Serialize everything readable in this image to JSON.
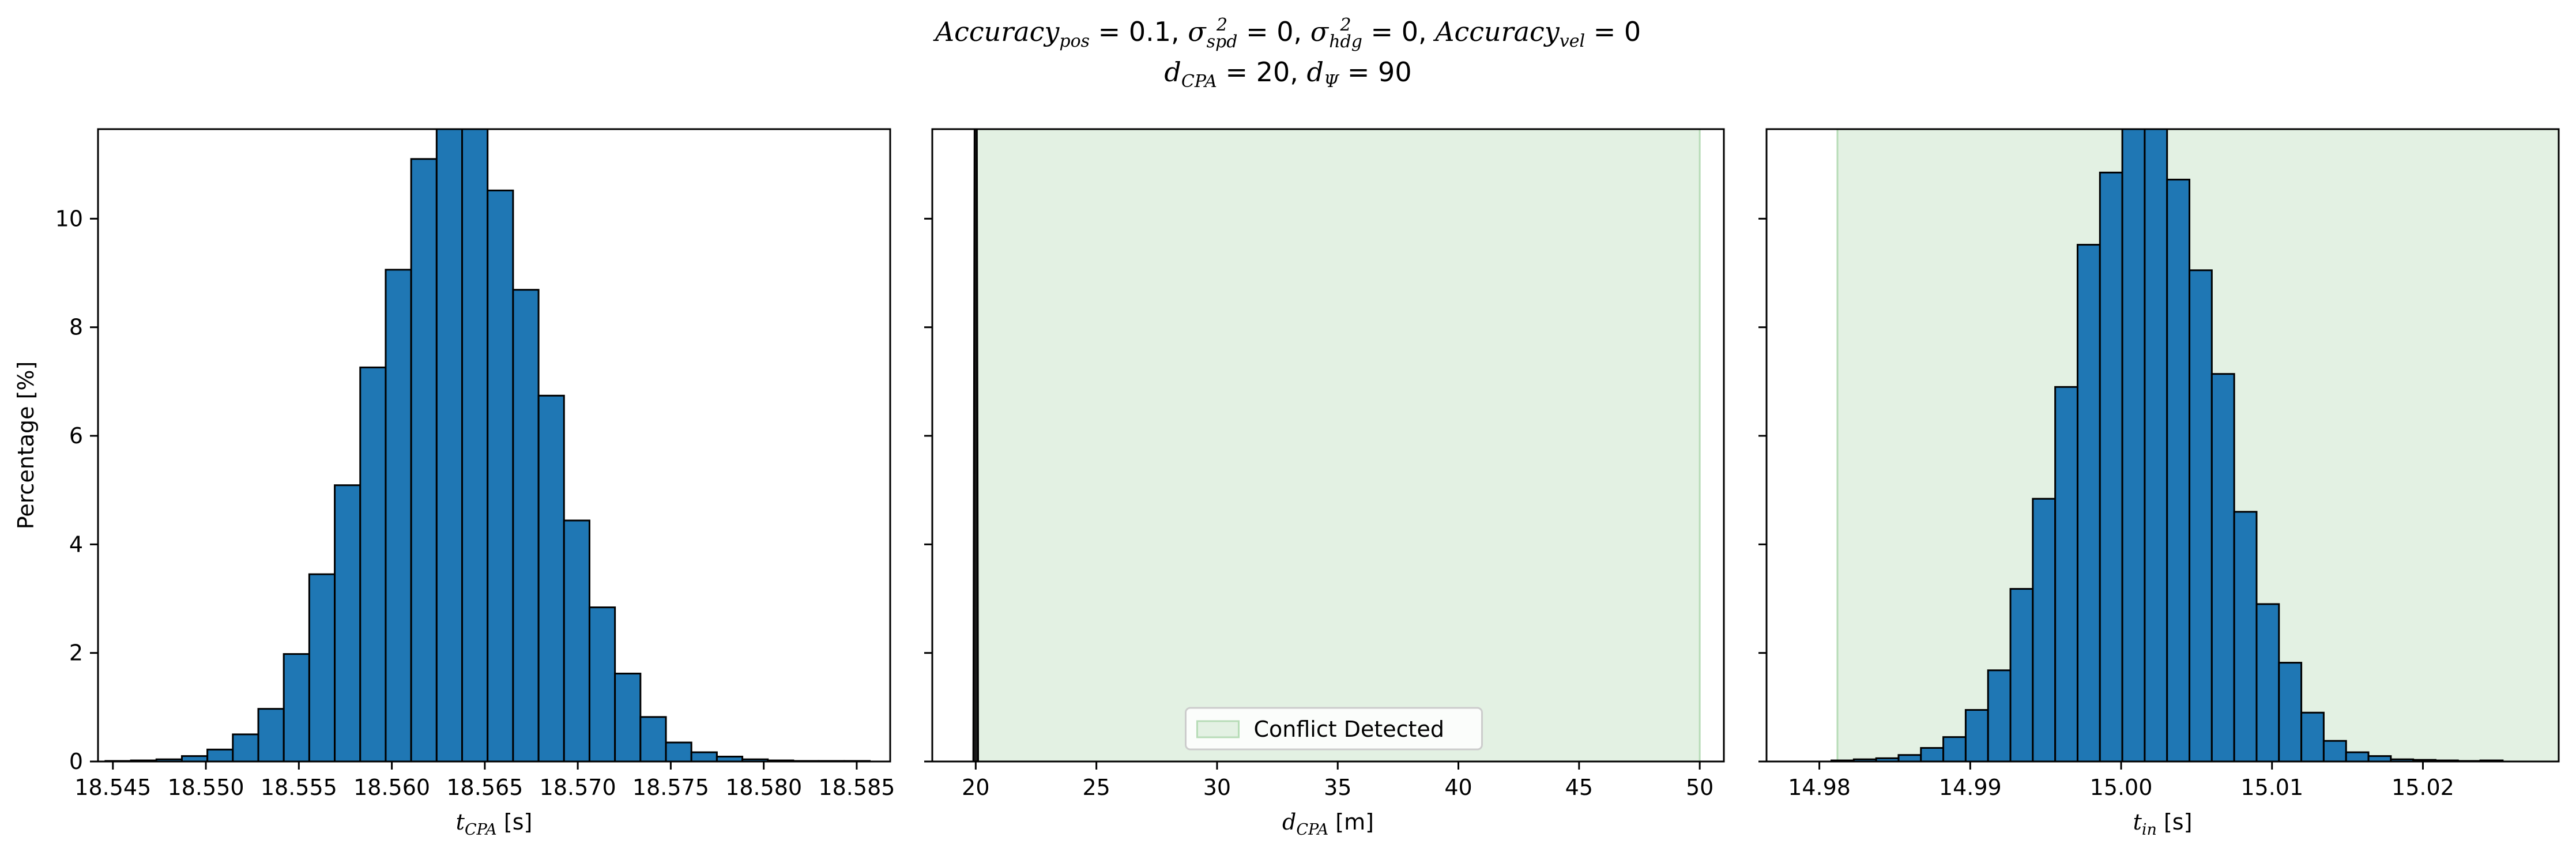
{
  "title": {
    "line1": [
      {
        "t": "Accuracy",
        "i": true
      },
      {
        "t": "pos",
        "sub": true
      },
      {
        "t": " = 0.1, "
      },
      {
        "t": "σ",
        "i": true
      },
      {
        "t": "2",
        "sup": true,
        "sub2": "spd"
      },
      {
        "t": " = 0, "
      },
      {
        "t": "σ",
        "i": true
      },
      {
        "t": "2",
        "sup": true,
        "sub2": "hdg"
      },
      {
        "t": " = 0, "
      },
      {
        "t": "Accuracy",
        "i": true
      },
      {
        "t": "vel",
        "sub": true
      },
      {
        "t": " = 0"
      }
    ],
    "line2": [
      {
        "t": "d",
        "i": true
      },
      {
        "t": "CPA",
        "sub": true
      },
      {
        "t": " = 20, "
      },
      {
        "t": "d",
        "i": true
      },
      {
        "t": "Ψ",
        "sub": true
      },
      {
        "t": " = 90"
      }
    ]
  },
  "colors": {
    "bar_fill": "#1f77b4",
    "bar_edge": "#000000",
    "conflict_fill": "#e3f1e3",
    "conflict_edge": "#b7dcb7",
    "narrow_fill": "#1a1a1a"
  },
  "chart_data": [
    {
      "type": "bar",
      "subtype": "histogram",
      "xlabel": "t_CPA [s]",
      "xlabel_main": "t",
      "xlabel_sub": "CPA",
      "xlabel_unit": " [s]",
      "ylabel": "Percentage [%]",
      "xlim": [
        18.5442,
        18.5868
      ],
      "ylim": [
        0,
        11.65
      ],
      "xticks": [
        18.545,
        18.55,
        18.555,
        18.56,
        18.565,
        18.57,
        18.575,
        18.58,
        18.585
      ],
      "xtick_labels": [
        "18.545",
        "18.550",
        "18.555",
        "18.560",
        "18.565",
        "18.570",
        "18.575",
        "18.580",
        "18.585"
      ],
      "yticks": [
        0,
        2,
        4,
        6,
        8,
        10
      ],
      "ytick_labels": [
        "0",
        "2",
        "4",
        "6",
        "8",
        "10"
      ],
      "bin_edges_start": 18.5446,
      "bin_width": 0.00137,
      "values": [
        0.01,
        0.02,
        0.04,
        0.1,
        0.22,
        0.5,
        0.97,
        1.98,
        3.45,
        5.09,
        7.26,
        9.06,
        11.1,
        11.65,
        11.65,
        10.52,
        8.69,
        6.74,
        4.44,
        2.84,
        1.62,
        0.82,
        0.35,
        0.17,
        0.09,
        0.04,
        0.02,
        0.01,
        0.01,
        0.01
      ]
    },
    {
      "type": "bar",
      "subtype": "histogram",
      "xlabel": "d_CPA [m]",
      "xlabel_main": "d",
      "xlabel_sub": "CPA",
      "xlabel_unit": " [m]",
      "xlim": [
        18.2,
        51.0
      ],
      "ylim": [
        0,
        11.65
      ],
      "xticks": [
        20,
        25,
        30,
        35,
        40,
        45,
        50
      ],
      "xtick_labels": [
        "20",
        "25",
        "30",
        "35",
        "40",
        "45",
        "50"
      ],
      "yticks": [
        0,
        2,
        4,
        6,
        8,
        10
      ],
      "narrow_spike": {
        "x_min": 19.9,
        "x_max": 20.1,
        "peak": 11.65
      },
      "shaded_region": {
        "x_min": 20.0,
        "x_max": 50.0,
        "label": "Conflict Detected"
      },
      "legend": {
        "position": "lower center",
        "entries": [
          "Conflict Detected"
        ]
      }
    },
    {
      "type": "bar",
      "subtype": "histogram",
      "xlabel": "t_in [s]",
      "xlabel_main": "t",
      "xlabel_sub": "in",
      "xlabel_unit": " [s]",
      "xlim": [
        14.9765,
        15.029
      ],
      "ylim": [
        0,
        11.65
      ],
      "xticks": [
        14.98,
        14.99,
        15.0,
        15.01,
        15.02
      ],
      "xtick_labels": [
        "14.98",
        "14.99",
        "15.00",
        "15.01",
        "15.02"
      ],
      "yticks": [
        0,
        2,
        4,
        6,
        8,
        10
      ],
      "shaded_region": {
        "x_min": 14.9812,
        "x_max": 15.029
      },
      "bin_edges_start": 14.9808,
      "bin_width": 0.001483,
      "values": [
        0.02,
        0.04,
        0.06,
        0.12,
        0.25,
        0.45,
        0.95,
        1.68,
        3.18,
        4.84,
        6.9,
        9.52,
        10.85,
        11.65,
        11.65,
        10.72,
        9.05,
        7.14,
        4.6,
        2.9,
        1.82,
        0.9,
        0.38,
        0.17,
        0.1,
        0.04,
        0.03,
        0.02,
        0.01,
        0.02
      ]
    }
  ]
}
